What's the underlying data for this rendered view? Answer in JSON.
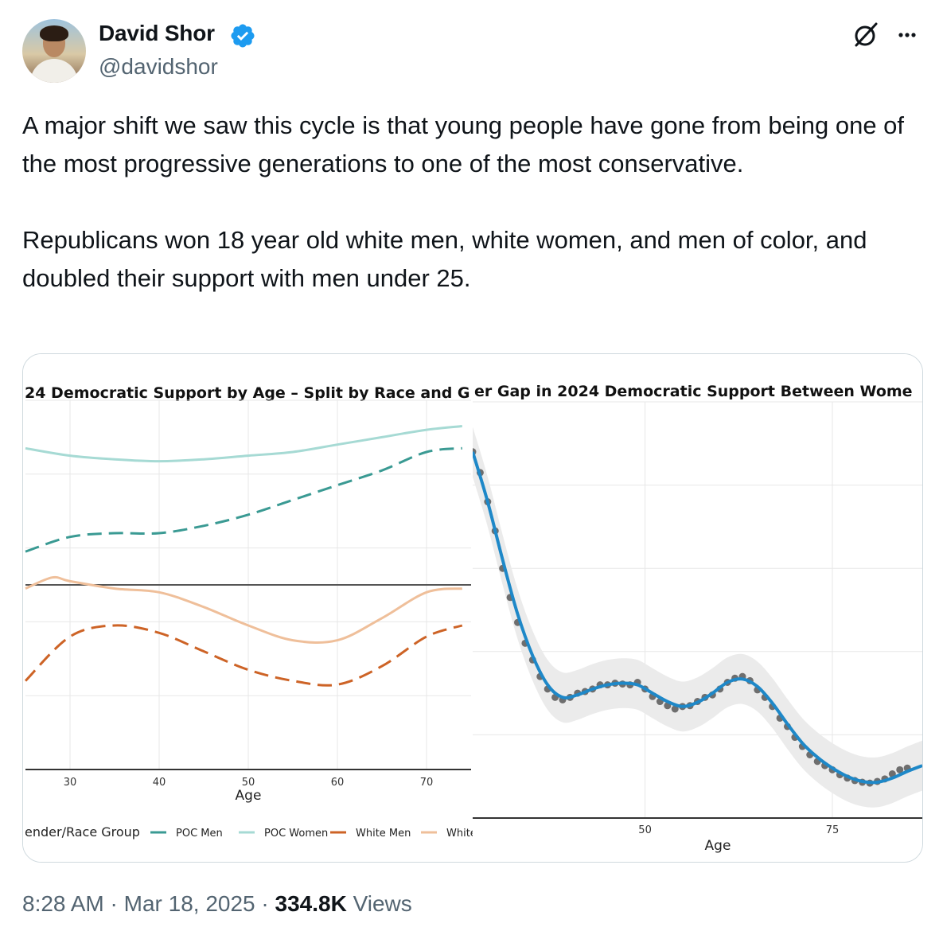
{
  "author": {
    "name": "David Shor",
    "handle": "@davidshor",
    "verified_color": "#1d9bf0"
  },
  "header_icons": [
    "grok-icon",
    "more-icon"
  ],
  "tweet": {
    "paragraphs": [
      "A major shift we saw this cycle is that young people have gone from being one of the most progressive generations to one of the most conservative.",
      "Republicans won 18 year old white men, white women, and men of color, and doubled their support with men under 25."
    ]
  },
  "footer": {
    "time": "8:28 AM",
    "date": "Mar 18, 2025",
    "views": "334.8K",
    "views_label": "Views"
  },
  "chart_data": [
    {
      "type": "line",
      "title": "24 Democratic Support by Age – Split by Race and G",
      "xlabel": "Age",
      "xticks": [
        30,
        40,
        50,
        60,
        70
      ],
      "xlim": [
        25,
        75
      ],
      "ylim": [
        0,
        100
      ],
      "reference_line": 50,
      "legend_title": "ender/Race Group",
      "legend_position": "bottom",
      "grid": true,
      "series": [
        {
          "name": "POC Men",
          "color": "#3a9a93",
          "dash": true,
          "x": [
            25,
            30,
            35,
            40,
            45,
            50,
            55,
            60,
            65,
            70,
            74
          ],
          "y": [
            59,
            63,
            64,
            64,
            66,
            69,
            73,
            77,
            81,
            86,
            87
          ]
        },
        {
          "name": "POC Women",
          "color": "#a6dad4",
          "dash": false,
          "x": [
            25,
            30,
            35,
            40,
            45,
            50,
            55,
            60,
            65,
            70,
            74
          ],
          "y": [
            87,
            85,
            84,
            83.5,
            84,
            85,
            86,
            88,
            90,
            92,
            93
          ]
        },
        {
          "name": "White Men",
          "color": "#cd6326",
          "dash": true,
          "x": [
            25,
            30,
            35,
            40,
            45,
            50,
            55,
            60,
            65,
            70,
            74
          ],
          "y": [
            24,
            36,
            39,
            37,
            32,
            27,
            24,
            23,
            28,
            36,
            39
          ]
        },
        {
          "name": "White",
          "color": "#efbf9a",
          "dash": false,
          "x": [
            25,
            28,
            30,
            35,
            40,
            45,
            50,
            55,
            60,
            65,
            70,
            74
          ],
          "y": [
            49,
            52,
            51,
            49,
            48,
            44,
            39,
            35,
            35,
            41,
            48,
            49
          ]
        }
      ]
    },
    {
      "type": "scatter",
      "title": "er Gap in 2024 Democratic Support Between Wome",
      "xlabel": "Age",
      "xticks": [
        50,
        75
      ],
      "xlim": [
        27,
        87
      ],
      "ylim": [
        0,
        50
      ],
      "grid": true,
      "smooth_color": "#1e88c8",
      "points": [
        [
          27,
          44
        ],
        [
          28,
          41.5
        ],
        [
          29,
          38
        ],
        [
          30,
          34.5
        ],
        [
          31,
          30
        ],
        [
          32,
          26.5
        ],
        [
          33,
          23.5
        ],
        [
          34,
          21
        ],
        [
          35,
          19
        ],
        [
          36,
          17
        ],
        [
          37,
          15.5
        ],
        [
          38,
          14.5
        ],
        [
          39,
          14.2
        ],
        [
          40,
          14.5
        ],
        [
          41,
          15
        ],
        [
          42,
          15.2
        ],
        [
          43,
          15.5
        ],
        [
          44,
          16
        ],
        [
          45,
          16
        ],
        [
          46,
          16.2
        ],
        [
          47,
          16.1
        ],
        [
          48,
          16
        ],
        [
          49,
          16.3
        ],
        [
          50,
          15.5
        ],
        [
          51,
          14.6
        ],
        [
          52,
          14
        ],
        [
          53,
          13.5
        ],
        [
          54,
          13.1
        ],
        [
          55,
          13.4
        ],
        [
          56,
          13.5
        ],
        [
          57,
          14
        ],
        [
          58,
          14.5
        ],
        [
          59,
          14.8
        ],
        [
          60,
          15.5
        ],
        [
          61,
          16.3
        ],
        [
          62,
          16.8
        ],
        [
          63,
          17
        ],
        [
          64,
          16.5
        ],
        [
          65,
          15.4
        ],
        [
          66,
          14.5
        ],
        [
          67,
          13.4
        ],
        [
          68,
          12
        ],
        [
          69,
          11
        ],
        [
          70,
          9.7
        ],
        [
          71,
          8.6
        ],
        [
          72,
          7.6
        ],
        [
          73,
          6.8
        ],
        [
          74,
          6.3
        ],
        [
          75,
          5.8
        ],
        [
          76,
          5.2
        ],
        [
          77,
          4.8
        ],
        [
          78,
          4.5
        ],
        [
          79,
          4.3
        ],
        [
          80,
          4.2
        ],
        [
          81,
          4.4
        ],
        [
          82,
          4.7
        ],
        [
          83,
          5.3
        ],
        [
          84,
          5.8
        ],
        [
          85,
          6
        ]
      ],
      "smooth": [
        [
          27,
          44
        ],
        [
          29,
          38
        ],
        [
          31,
          31
        ],
        [
          33,
          24.5
        ],
        [
          35,
          19.5
        ],
        [
          37,
          16
        ],
        [
          39,
          14.5
        ],
        [
          41,
          14.8
        ],
        [
          43,
          15.5
        ],
        [
          45,
          16
        ],
        [
          47,
          16.2
        ],
        [
          49,
          16
        ],
        [
          51,
          15
        ],
        [
          53,
          14
        ],
        [
          55,
          13.4
        ],
        [
          57,
          13.9
        ],
        [
          59,
          15
        ],
        [
          61,
          16.3
        ],
        [
          63,
          16.7
        ],
        [
          65,
          15.8
        ],
        [
          67,
          13.8
        ],
        [
          69,
          11.3
        ],
        [
          71,
          9
        ],
        [
          73,
          7.3
        ],
        [
          75,
          6
        ],
        [
          77,
          5
        ],
        [
          79,
          4.4
        ],
        [
          81,
          4.3
        ],
        [
          83,
          4.8
        ],
        [
          85,
          5.6
        ],
        [
          87,
          6.3
        ]
      ]
    }
  ]
}
